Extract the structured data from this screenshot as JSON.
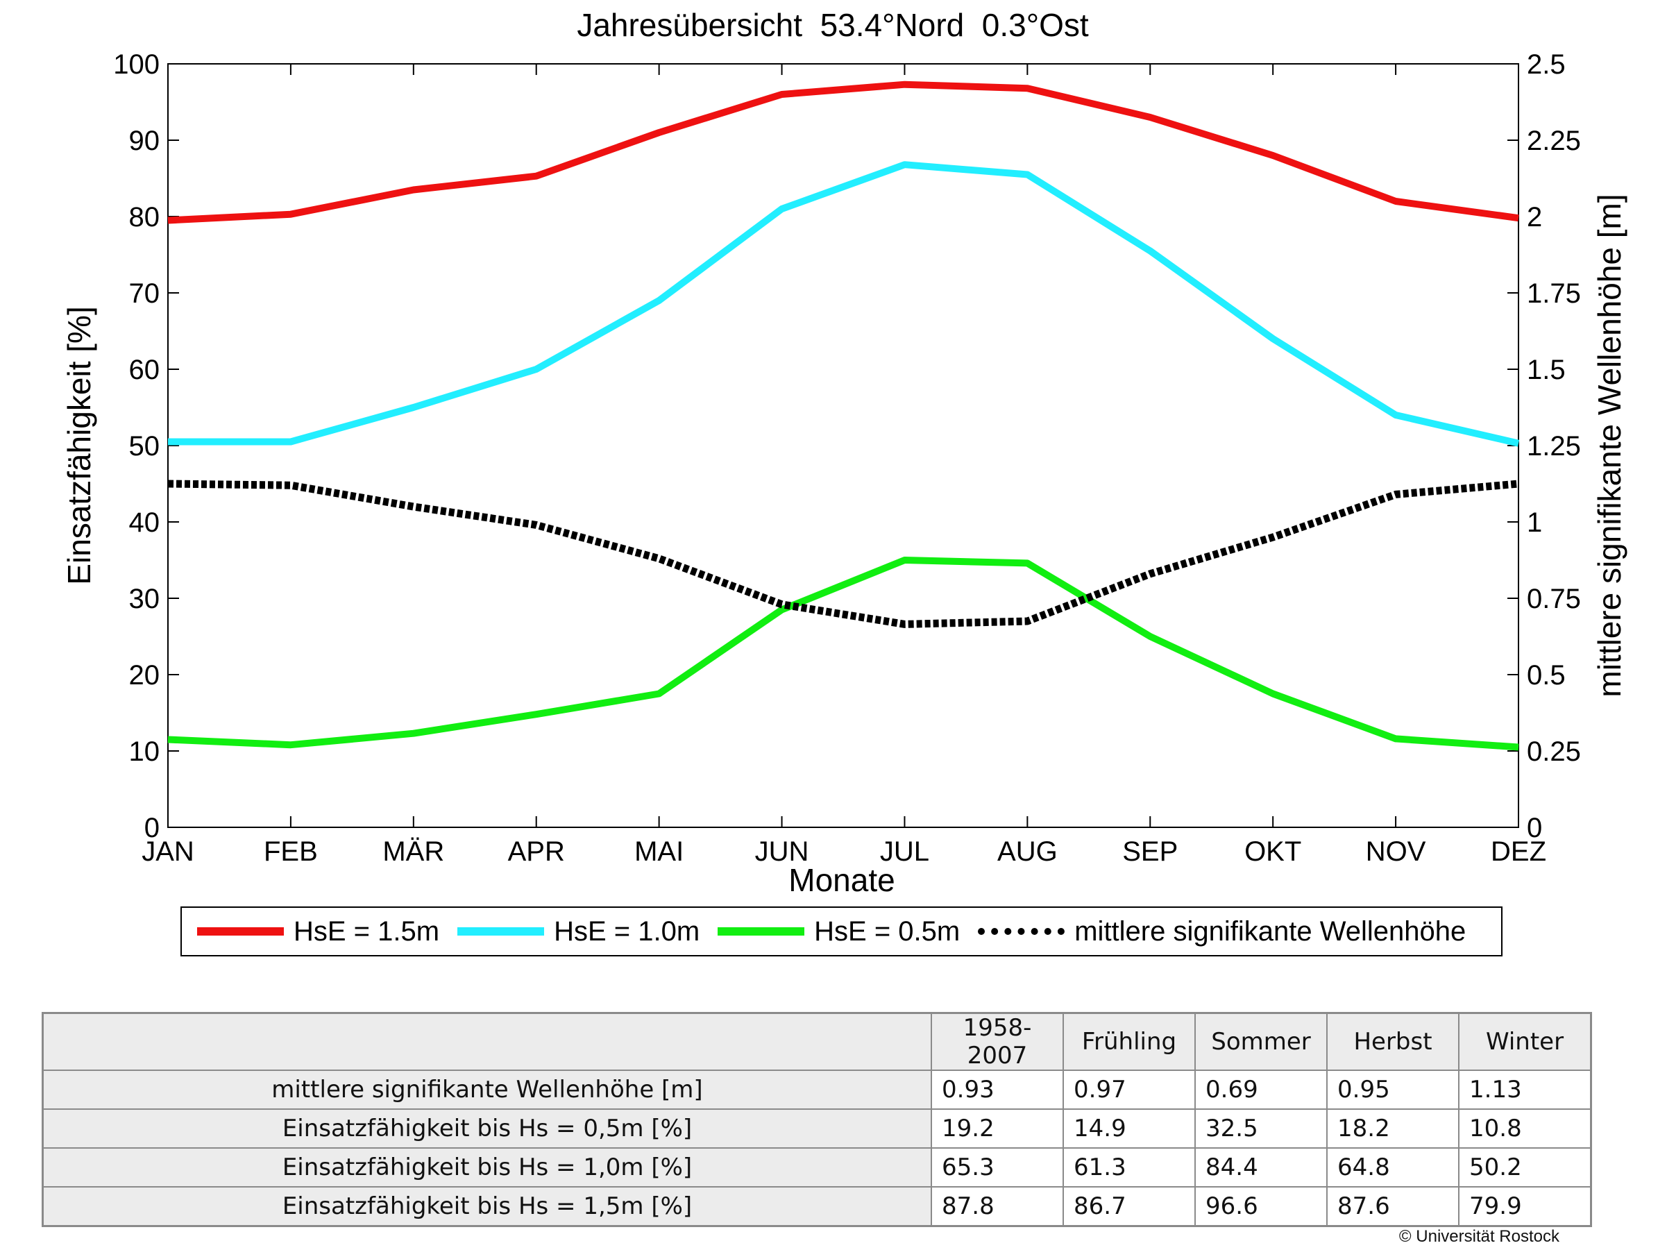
{
  "chart_data": {
    "type": "line",
    "title": "Jahresübersicht  53.4°Nord  0.3°Ost",
    "xlabel": "Monate",
    "ylabel_left": "Einsatzfähigkeit [%]",
    "ylabel_right": "mittlere signifikante Wellenhöhe [m]",
    "categories": [
      "JAN",
      "FEB",
      "MÄR",
      "APR",
      "MAI",
      "JUN",
      "JUL",
      "AUG",
      "SEP",
      "OKT",
      "NOV",
      "DEZ"
    ],
    "ylim_left": [
      0,
      100
    ],
    "ylim_right": [
      0,
      2.5
    ],
    "yticks_left": [
      "0",
      "10",
      "20",
      "30",
      "40",
      "50",
      "60",
      "70",
      "80",
      "90",
      "100"
    ],
    "yticks_right": [
      "0",
      "0.25",
      "0.5",
      "0.75",
      "1",
      "1.25",
      "1.5",
      "1.75",
      "2",
      "2.25",
      "2.5"
    ],
    "grid": false,
    "legend_position": "bottom",
    "series": [
      {
        "name": "HsE = 1.5m",
        "axis": "left",
        "color": "#ee1111",
        "style": "solid",
        "values": [
          79.5,
          80.3,
          83.5,
          85.3,
          91.0,
          96.0,
          97.3,
          96.8,
          93.0,
          88.0,
          82.0,
          79.8
        ]
      },
      {
        "name": "HsE = 1.0m",
        "axis": "left",
        "color": "#22eeff",
        "style": "solid",
        "values": [
          50.5,
          50.5,
          55.0,
          60.0,
          69.0,
          81.0,
          86.8,
          85.5,
          75.5,
          64.0,
          54.0,
          50.3
        ]
      },
      {
        "name": "HsE = 0.5m",
        "axis": "left",
        "color": "#11ee11",
        "style": "solid",
        "values": [
          11.5,
          10.8,
          12.3,
          14.8,
          17.5,
          28.5,
          35.0,
          34.6,
          25.0,
          17.5,
          11.6,
          10.5
        ]
      },
      {
        "name": "mittlere signifikante Wellenhöhe",
        "axis": "right",
        "color": "#000000",
        "style": "dotted",
        "values": [
          1.125,
          1.12,
          1.05,
          0.99,
          0.88,
          0.73,
          0.665,
          0.675,
          0.83,
          0.95,
          1.09,
          1.125
        ]
      }
    ]
  },
  "table": {
    "headers": [
      "1958-2007",
      "Frühling",
      "Sommer",
      "Herbst",
      "Winter"
    ],
    "rows": [
      {
        "label": "mittlere signifikante Wellenhöhe [m]",
        "values": [
          "0.93",
          "0.97",
          "0.69",
          "0.95",
          "1.13"
        ]
      },
      {
        "label": "Einsatzfähigkeit bis Hs = 0,5m [%]",
        "values": [
          "19.2",
          "14.9",
          "32.5",
          "18.2",
          "10.8"
        ]
      },
      {
        "label": "Einsatzfähigkeit bis Hs = 1,0m [%]",
        "values": [
          "65.3",
          "61.3",
          "84.4",
          "64.8",
          "50.2"
        ]
      },
      {
        "label": "Einsatzfähigkeit bis Hs = 1,5m [%]",
        "values": [
          "87.8",
          "86.7",
          "96.6",
          "87.6",
          "79.9"
        ]
      }
    ]
  },
  "copyright": "© Universität Rostock"
}
